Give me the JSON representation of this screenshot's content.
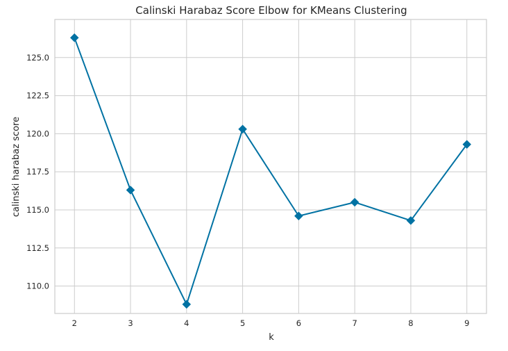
{
  "chart_data": {
    "type": "line",
    "title": "Calinski Harabaz Score Elbow for KMeans Clustering",
    "xlabel": "k",
    "ylabel": "calinski harabaz score",
    "x": [
      2,
      3,
      4,
      5,
      6,
      7,
      8,
      9
    ],
    "xlim": [
      1.65,
      9.35
    ],
    "ylim": [
      108.2,
      127.5
    ],
    "xticks": [
      2,
      3,
      4,
      5,
      6,
      7,
      8,
      9
    ],
    "yticks": [
      110.0,
      112.5,
      115.0,
      117.5,
      120.0,
      122.5,
      125.0
    ],
    "ytick_labels": [
      "110.0",
      "112.5",
      "115.0",
      "117.5",
      "120.0",
      "122.5",
      "125.0"
    ],
    "grid": true,
    "marker": "diamond",
    "series": [
      {
        "values": [
          126.3,
          116.3,
          108.8,
          120.3,
          114.6,
          115.5,
          114.3,
          119.3
        ],
        "color": "#0072a3"
      }
    ]
  }
}
